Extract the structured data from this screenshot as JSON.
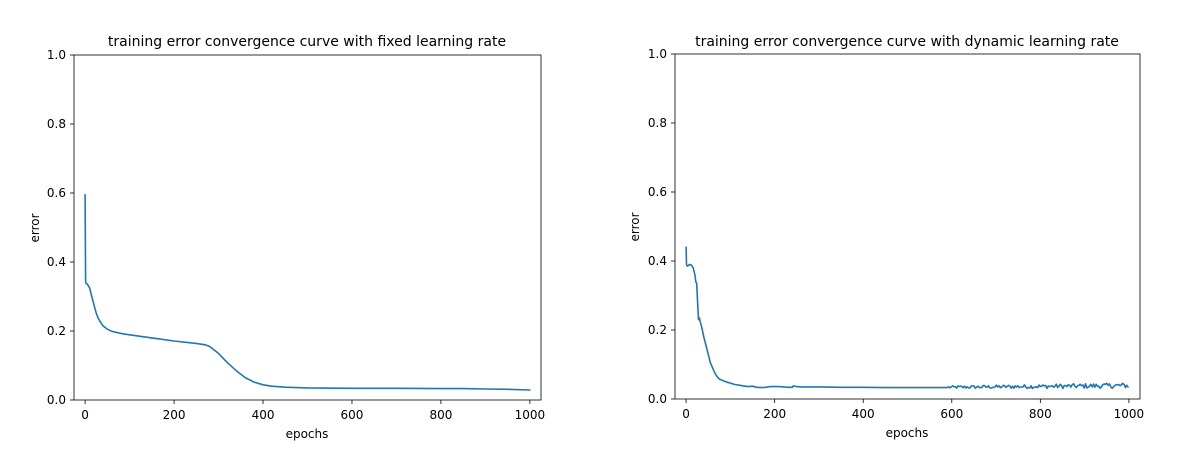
{
  "chart_data": [
    {
      "type": "line",
      "title": "training error convergence curve with fixed learning rate",
      "xlabel": "epochs",
      "ylabel": "error",
      "xlim": [
        -25,
        1025
      ],
      "ylim": [
        0.0,
        1.0
      ],
      "x_ticks": [
        "0",
        "200",
        "400",
        "600",
        "800",
        "1000"
      ],
      "y_ticks": [
        "0.0",
        "0.2",
        "0.4",
        "0.6",
        "0.8",
        "1.0"
      ],
      "grid": false,
      "color": "#1f77b4",
      "series": [
        {
          "name": "error",
          "x": [
            0,
            1,
            2,
            5,
            10,
            15,
            20,
            25,
            30,
            40,
            50,
            60,
            80,
            100,
            150,
            200,
            250,
            270,
            280,
            300,
            320,
            340,
            360,
            380,
            400,
            420,
            450,
            500,
            600,
            700,
            800,
            850,
            900,
            950,
            1000
          ],
          "y": [
            0.595,
            0.345,
            0.338,
            0.336,
            0.325,
            0.3,
            0.275,
            0.252,
            0.235,
            0.215,
            0.205,
            0.199,
            0.193,
            0.189,
            0.18,
            0.171,
            0.164,
            0.16,
            0.155,
            0.135,
            0.108,
            0.085,
            0.065,
            0.052,
            0.044,
            0.04,
            0.037,
            0.035,
            0.034,
            0.034,
            0.033,
            0.033,
            0.032,
            0.031,
            0.029
          ]
        }
      ]
    },
    {
      "type": "line",
      "title": "training error convergence curve with dynamic learning rate",
      "xlabel": "epochs",
      "ylabel": "error",
      "xlim": [
        -25,
        1025
      ],
      "ylim": [
        0.0,
        1.0
      ],
      "x_ticks": [
        "0",
        "200",
        "400",
        "600",
        "800",
        "1000"
      ],
      "y_ticks": [
        "0.0",
        "0.2",
        "0.4",
        "0.6",
        "0.8",
        "1.0"
      ],
      "grid": false,
      "color": "#1f77b4",
      "series": [
        {
          "name": "error",
          "x": [
            0,
            1,
            3,
            8,
            12,
            16,
            20,
            22,
            24,
            26,
            28,
            30,
            32,
            36,
            40,
            45,
            50,
            55,
            60,
            65,
            70,
            75,
            80,
            90,
            100,
            110,
            120,
            130,
            140,
            150,
            160,
            170,
            180,
            190,
            200,
            210,
            220,
            230,
            240,
            242,
            250,
            260,
            270,
            280,
            290,
            300,
            350,
            400,
            450,
            500,
            550,
            590
          ],
          "y": [
            0.44,
            0.39,
            0.385,
            0.39,
            0.388,
            0.38,
            0.36,
            0.34,
            0.335,
            0.28,
            0.23,
            0.235,
            0.225,
            0.205,
            0.18,
            0.155,
            0.13,
            0.105,
            0.09,
            0.075,
            0.065,
            0.058,
            0.055,
            0.05,
            0.046,
            0.042,
            0.04,
            0.038,
            0.036,
            0.037,
            0.034,
            0.033,
            0.034,
            0.036,
            0.036,
            0.036,
            0.035,
            0.034,
            0.034,
            0.038,
            0.036,
            0.035,
            0.035,
            0.035,
            0.035,
            0.035,
            0.034,
            0.034,
            0.033,
            0.033,
            0.033,
            0.033
          ],
          "noisy_tail": {
            "x_start": 590,
            "x_end": 1000,
            "step": 3,
            "base_start": 0.034,
            "base_end": 0.039,
            "amplitude": 0.008
          }
        }
      ]
    }
  ]
}
